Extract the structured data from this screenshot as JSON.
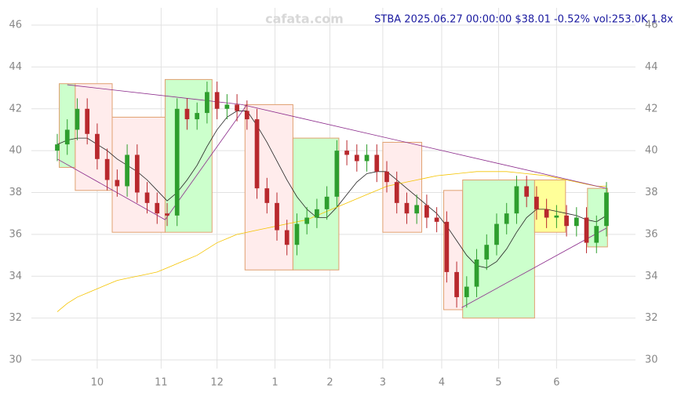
{
  "chart_data": {
    "type": "candlestick",
    "title": "STBA 2025.06.27 00:00:00 $38.01 -0.52% vol:253.0K 1.8x",
    "watermark": "cafata.com",
    "ylim": [
      30,
      46
    ],
    "yticks": [
      30,
      32,
      34,
      36,
      38,
      40,
      42,
      44,
      46
    ],
    "xlim": [
      0,
      55
    ],
    "xticks": [
      {
        "value": 4,
        "label": "10"
      },
      {
        "value": 10.4,
        "label": "11"
      },
      {
        "value": 16,
        "label": "12"
      },
      {
        "value": 21.8,
        "label": "1"
      },
      {
        "value": 27.3,
        "label": "2"
      },
      {
        "value": 32.6,
        "label": "3"
      },
      {
        "value": 38.5,
        "label": "4"
      },
      {
        "value": 44.2,
        "label": "5"
      },
      {
        "value": 50,
        "label": "6"
      }
    ],
    "grid": true,
    "up_color": "#2e9e2e",
    "down_color": "#b8282d",
    "open": [
      40.0,
      40.3,
      41.0,
      42.0,
      40.8,
      39.6,
      38.6,
      38.3,
      39.8,
      38.0,
      37.5,
      37.0,
      36.9,
      42.0,
      41.5,
      41.8,
      42.8,
      42.0,
      42.2,
      41.9,
      41.5,
      38.2,
      37.5,
      36.2,
      35.5,
      36.5,
      36.8,
      37.2,
      37.8,
      40.0,
      39.8,
      39.5,
      39.8,
      39.0,
      38.5,
      37.5,
      37.0,
      37.4,
      36.8,
      36.6,
      34.2,
      33.0,
      33.5,
      34.8,
      35.5,
      36.5,
      37.0,
      38.3,
      37.8,
      37.2,
      36.8,
      36.9,
      36.4,
      36.8,
      35.6,
      36.4
    ],
    "high": [
      40.8,
      41.5,
      42.5,
      42.5,
      41.3,
      40.1,
      39.1,
      40.3,
      40.3,
      38.5,
      38.0,
      37.5,
      42.5,
      42.5,
      42.3,
      43.3,
      43.3,
      42.7,
      42.7,
      42.4,
      42.0,
      38.7,
      38.0,
      36.7,
      37.0,
      37.3,
      37.7,
      38.3,
      40.5,
      40.5,
      40.3,
      40.3,
      40.3,
      39.5,
      39.0,
      38.0,
      37.9,
      37.9,
      37.3,
      37.1,
      34.7,
      34.0,
      35.3,
      36.0,
      37.0,
      37.5,
      38.8,
      38.8,
      38.3,
      37.7,
      37.4,
      37.4,
      37.3,
      37.3,
      36.9,
      38.5
    ],
    "low": [
      39.5,
      39.8,
      40.5,
      40.3,
      39.1,
      38.1,
      37.8,
      37.8,
      37.5,
      37.0,
      36.5,
      36.4,
      36.4,
      41.0,
      41.0,
      41.3,
      41.5,
      41.5,
      41.4,
      41.0,
      37.7,
      37.0,
      35.7,
      35.0,
      35.0,
      36.0,
      36.3,
      36.7,
      37.3,
      39.3,
      39.0,
      39.0,
      38.5,
      38.0,
      37.0,
      36.5,
      36.5,
      36.3,
      36.1,
      33.7,
      32.5,
      32.5,
      33.0,
      34.3,
      35.0,
      36.0,
      36.5,
      37.3,
      36.7,
      36.3,
      36.3,
      35.9,
      35.9,
      35.1,
      35.1,
      35.9
    ],
    "close": [
      40.3,
      41.0,
      42.0,
      40.8,
      39.6,
      38.6,
      38.3,
      39.8,
      38.0,
      37.5,
      37.0,
      36.9,
      42.0,
      41.5,
      41.8,
      42.8,
      42.0,
      42.2,
      41.9,
      41.5,
      38.2,
      37.5,
      36.2,
      35.5,
      36.5,
      36.8,
      37.2,
      37.8,
      40.0,
      39.8,
      39.5,
      39.8,
      39.0,
      38.5,
      37.5,
      37.0,
      37.4,
      36.8,
      36.6,
      34.2,
      33.0,
      33.5,
      34.8,
      35.5,
      36.5,
      37.0,
      38.3,
      37.8,
      37.2,
      36.8,
      36.9,
      36.4,
      36.8,
      35.6,
      36.4,
      38.0
    ],
    "boxes": [
      {
        "x0": 0.2,
        "x1": 1.8,
        "low": 39.2,
        "high": 43.2,
        "color": "#ccffcc"
      },
      {
        "x0": 1.8,
        "x1": 5.5,
        "low": 38.1,
        "high": 43.2,
        "color": "#ffecec"
      },
      {
        "x0": 5.5,
        "x1": 10.8,
        "low": 36.1,
        "high": 41.6,
        "color": "#ffecec"
      },
      {
        "x0": 10.8,
        "x1": 15.5,
        "low": 36.1,
        "high": 43.4,
        "color": "#ccffcc"
      },
      {
        "x0": 18.8,
        "x1": 23.6,
        "low": 34.3,
        "high": 42.2,
        "color": "#ffecec"
      },
      {
        "x0": 23.6,
        "x1": 28.2,
        "low": 34.3,
        "high": 40.6,
        "color": "#ccffcc"
      },
      {
        "x0": 32.6,
        "x1": 36.5,
        "low": 36.1,
        "high": 40.4,
        "color": "#ffecec"
      },
      {
        "x0": 38.7,
        "x1": 40.6,
        "low": 32.4,
        "high": 38.1,
        "color": "#ffecec"
      },
      {
        "x0": 40.6,
        "x1": 47.8,
        "low": 32.0,
        "high": 38.6,
        "color": "#ccffcc"
      },
      {
        "x0": 47.8,
        "x1": 50.9,
        "low": 36.1,
        "high": 38.6,
        "color": "#ffff99"
      },
      {
        "x0": 53.1,
        "x1": 55.1,
        "low": 35.4,
        "high": 38.2,
        "color": "#ccffcc"
      }
    ],
    "lines": [
      {
        "color": "#222222",
        "values": [
          40.3,
          40.5,
          40.6,
          40.6,
          40.3,
          40.0,
          39.6,
          39.3,
          39.0,
          38.6,
          38.1,
          37.6,
          38.0,
          38.6,
          39.3,
          40.2,
          41.0,
          41.6,
          41.9,
          41.9,
          41.2,
          40.4,
          39.5,
          38.6,
          37.8,
          37.2,
          36.8,
          36.8,
          37.3,
          37.9,
          38.5,
          38.9,
          39.0,
          39.0,
          38.6,
          38.2,
          37.8,
          37.4,
          37.0,
          36.4,
          35.7,
          35.0,
          34.5,
          34.4,
          34.7,
          35.3,
          36.1,
          36.8,
          37.2,
          37.2,
          37.1,
          37.0,
          36.9,
          36.7,
          36.6,
          36.9
        ]
      },
      {
        "color": "#f5c400",
        "values": [
          32.3,
          32.7,
          33.0,
          33.2,
          33.4,
          33.6,
          33.8,
          33.9,
          34.0,
          34.1,
          34.2,
          34.4,
          34.6,
          34.8,
          35.0,
          35.3,
          35.6,
          35.8,
          36.0,
          36.1,
          36.2,
          36.3,
          36.4,
          36.5,
          36.6,
          36.7,
          36.9,
          37.1,
          37.3,
          37.5,
          37.7,
          37.9,
          38.1,
          38.3,
          38.4,
          38.5,
          38.6,
          38.7,
          38.8,
          38.85,
          38.9,
          38.95,
          39.0,
          39.0,
          39.0,
          39.0,
          38.95,
          38.9,
          38.85,
          38.8,
          38.7,
          38.6,
          38.5,
          38.4,
          38.3,
          38.3
        ]
      }
    ],
    "trendlines": [
      {
        "color": "#8b2a8b",
        "x": [
          1,
          18.5,
          55
        ],
        "y": [
          43.15,
          42.2,
          38.2
        ]
      },
      {
        "color": "#8b2a8b",
        "x": [
          0,
          10.8,
          19
        ],
        "y": [
          39.6,
          36.7,
          42.2
        ]
      },
      {
        "color": "#8b2a8b",
        "x": [
          40.5,
          55
        ],
        "y": [
          32.5,
          36.3
        ]
      }
    ]
  }
}
